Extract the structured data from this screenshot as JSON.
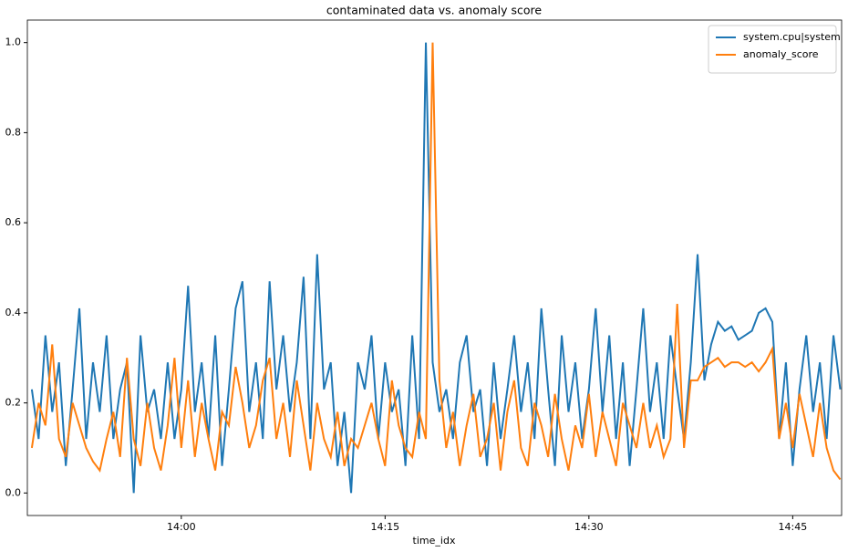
{
  "chart_data": {
    "type": "line",
    "title": "contaminated data vs. anomaly score",
    "x_label": "time_idx",
    "x": [
      829,
      829.5,
      830,
      830.5,
      831,
      831.5,
      832,
      832.5,
      833,
      833.5,
      834,
      834.5,
      835,
      835.5,
      836,
      836.5,
      837,
      837.5,
      838,
      838.5,
      839,
      839.5,
      840,
      840.5,
      841,
      841.5,
      842,
      842.5,
      843,
      843.5,
      844,
      844.5,
      845,
      845.5,
      846,
      846.5,
      847,
      847.5,
      848,
      848.5,
      849,
      849.5,
      850,
      850.5,
      851,
      851.5,
      852,
      852.5,
      853,
      853.5,
      854,
      854.5,
      855,
      855.5,
      856,
      856.5,
      857,
      857.5,
      858,
      858.5,
      859,
      859.5,
      860,
      860.5,
      861,
      861.5,
      862,
      862.5,
      863,
      863.5,
      864,
      864.5,
      865,
      865.5,
      866,
      866.5,
      867,
      867.5,
      868,
      868.5,
      869,
      869.5,
      870,
      870.5,
      871,
      871.5,
      872,
      872.5,
      873,
      873.5,
      874,
      874.5,
      875,
      875.5,
      876,
      876.5,
      877,
      877.5,
      878,
      878.5,
      879,
      879.5,
      880,
      880.5,
      881,
      881.5,
      882,
      882.5,
      883,
      883.5,
      884,
      884.5,
      885,
      885.5,
      886,
      886.5,
      887,
      887.5,
      888,
      888.5
    ],
    "series": [
      {
        "name": "system.cpu|system",
        "color": "#1f77b4",
        "values": [
          0.23,
          0.12,
          0.35,
          0.18,
          0.29,
          0.06,
          0.23,
          0.41,
          0.12,
          0.29,
          0.18,
          0.35,
          0.12,
          0.23,
          0.29,
          0.0,
          0.35,
          0.18,
          0.23,
          0.12,
          0.29,
          0.12,
          0.23,
          0.46,
          0.18,
          0.29,
          0.12,
          0.35,
          0.06,
          0.23,
          0.41,
          0.47,
          0.18,
          0.29,
          0.12,
          0.47,
          0.23,
          0.35,
          0.18,
          0.29,
          0.48,
          0.12,
          0.53,
          0.23,
          0.29,
          0.06,
          0.18,
          0.0,
          0.29,
          0.23,
          0.35,
          0.12,
          0.29,
          0.18,
          0.23,
          0.06,
          0.35,
          0.12,
          1.0,
          0.29,
          0.18,
          0.23,
          0.12,
          0.29,
          0.35,
          0.18,
          0.23,
          0.06,
          0.29,
          0.12,
          0.23,
          0.35,
          0.18,
          0.29,
          0.12,
          0.41,
          0.23,
          0.06,
          0.35,
          0.18,
          0.29,
          0.12,
          0.23,
          0.41,
          0.18,
          0.35,
          0.12,
          0.29,
          0.06,
          0.23,
          0.41,
          0.18,
          0.29,
          0.12,
          0.35,
          0.23,
          0.12,
          0.29,
          0.53,
          0.25,
          0.33,
          0.38,
          0.36,
          0.37,
          0.34,
          0.35,
          0.36,
          0.4,
          0.41,
          0.38,
          0.12,
          0.29,
          0.06,
          0.23,
          0.35,
          0.18,
          0.29,
          0.12,
          0.35,
          0.23
        ]
      },
      {
        "name": "anomaly_score",
        "color": "#ff7f0e",
        "values": [
          0.1,
          0.2,
          0.15,
          0.33,
          0.12,
          0.08,
          0.2,
          0.15,
          0.1,
          0.07,
          0.05,
          0.12,
          0.18,
          0.08,
          0.3,
          0.12,
          0.06,
          0.2,
          0.1,
          0.05,
          0.15,
          0.3,
          0.1,
          0.25,
          0.08,
          0.2,
          0.12,
          0.05,
          0.18,
          0.15,
          0.28,
          0.2,
          0.1,
          0.15,
          0.25,
          0.3,
          0.12,
          0.2,
          0.08,
          0.25,
          0.15,
          0.05,
          0.2,
          0.12,
          0.08,
          0.18,
          0.06,
          0.12,
          0.1,
          0.15,
          0.2,
          0.12,
          0.06,
          0.25,
          0.15,
          0.1,
          0.08,
          0.18,
          0.12,
          1.0,
          0.25,
          0.1,
          0.18,
          0.06,
          0.15,
          0.22,
          0.08,
          0.12,
          0.2,
          0.05,
          0.18,
          0.25,
          0.1,
          0.06,
          0.2,
          0.15,
          0.08,
          0.22,
          0.12,
          0.05,
          0.15,
          0.1,
          0.22,
          0.08,
          0.18,
          0.12,
          0.06,
          0.2,
          0.15,
          0.1,
          0.2,
          0.1,
          0.15,
          0.08,
          0.12,
          0.42,
          0.1,
          0.25,
          0.25,
          0.28,
          0.29,
          0.3,
          0.28,
          0.29,
          0.29,
          0.28,
          0.29,
          0.27,
          0.29,
          0.32,
          0.12,
          0.2,
          0.1,
          0.22,
          0.15,
          0.08,
          0.2,
          0.1,
          0.05,
          0.03
        ]
      }
    ],
    "xlim": [
      828.67,
      888.6
    ],
    "xticks": [
      {
        "value": 840,
        "label": "14:00"
      },
      {
        "value": 855,
        "label": "14:15"
      },
      {
        "value": 870,
        "label": "14:30"
      },
      {
        "value": 885,
        "label": "14:45"
      }
    ],
    "ylim": [
      -0.05,
      1.05
    ],
    "yticks": [
      {
        "value": 0,
        "label": "0.0"
      },
      0.2,
      0.4,
      0.6,
      0.8,
      {
        "value": 1,
        "label": "1.0"
      }
    ],
    "legend": "upper right"
  }
}
